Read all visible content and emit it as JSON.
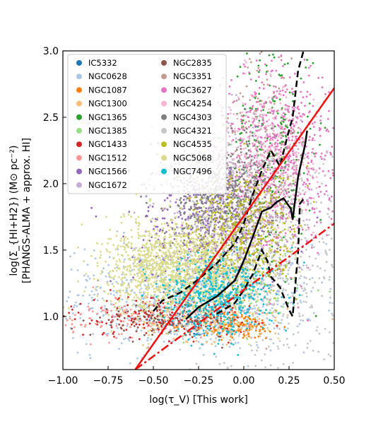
{
  "chart_data": {
    "type": "scatter",
    "title": "",
    "xlabel": "log(τ_V) [This work]",
    "ylabel_line1": "log(Σ_{HI+H2}) (M⊙ pc⁻²)",
    "ylabel_line2": "[PHANGS-ALMA + approx. HI]",
    "xlim": [
      -1.0,
      0.5
    ],
    "ylim": [
      0.6,
      3.0
    ],
    "xticks": [
      -1.0,
      -0.75,
      -0.5,
      -0.25,
      0.0,
      0.25,
      0.5
    ],
    "xtick_labels": [
      "−1.00",
      "−0.75",
      "−0.50",
      "−0.25",
      "0.00",
      "0.25",
      "0.50"
    ],
    "yticks": [
      1.0,
      1.5,
      2.0,
      2.5,
      3.0
    ],
    "ytick_labels": [
      "1.0",
      "1.5",
      "2.0",
      "2.5",
      "3.0"
    ],
    "legend_position": "top-left",
    "series": [
      {
        "name": "IC5332",
        "color": "#1f77b4",
        "center": [
          -0.3,
          0.95
        ],
        "spread": [
          0.12,
          0.05
        ],
        "count": 60
      },
      {
        "name": "NGC0628",
        "color": "#aec7e8",
        "center": [
          -0.3,
          1.15
        ],
        "spread": [
          0.35,
          0.2
        ],
        "count": 900
      },
      {
        "name": "NGC1087",
        "color": "#ff7f0e",
        "center": [
          -0.05,
          0.93
        ],
        "spread": [
          0.12,
          0.05
        ],
        "count": 150
      },
      {
        "name": "NGC1300",
        "color": "#ffbb78",
        "center": [
          -0.15,
          0.95
        ],
        "spread": [
          0.2,
          0.07
        ],
        "count": 150
      },
      {
        "name": "NGC1365",
        "color": "#2ca02c",
        "center": [
          0.15,
          2.3
        ],
        "spread": [
          0.12,
          0.45
        ],
        "count": 250
      },
      {
        "name": "NGC1385",
        "color": "#98df8a",
        "center": [
          -0.1,
          1.2
        ],
        "spread": [
          0.2,
          0.15
        ],
        "count": 150
      },
      {
        "name": "NGC1433",
        "color": "#d62728",
        "center": [
          -0.45,
          1.0
        ],
        "spread": [
          0.25,
          0.08
        ],
        "count": 200
      },
      {
        "name": "NGC1512",
        "color": "#ff9896",
        "center": [
          -0.55,
          1.0
        ],
        "spread": [
          0.25,
          0.08
        ],
        "count": 150
      },
      {
        "name": "NGC1566",
        "color": "#9467bd",
        "center": [
          -0.2,
          1.7
        ],
        "spread": [
          0.2,
          0.25
        ],
        "count": 500
      },
      {
        "name": "NGC1672",
        "color": "#c5b0d5",
        "center": [
          -0.1,
          1.9
        ],
        "spread": [
          0.2,
          0.3
        ],
        "count": 300
      },
      {
        "name": "NGC2835",
        "color": "#8c564b",
        "center": [
          -0.45,
          0.97
        ],
        "spread": [
          0.2,
          0.06
        ],
        "count": 120
      },
      {
        "name": "NGC3351",
        "color": "#c49c94",
        "center": [
          0.1,
          2.3
        ],
        "spread": [
          0.12,
          0.45
        ],
        "count": 200
      },
      {
        "name": "NGC3627",
        "color": "#e377c2",
        "center": [
          0.2,
          2.2
        ],
        "spread": [
          0.15,
          0.35
        ],
        "count": 700
      },
      {
        "name": "NGC4254",
        "color": "#f7b6d2",
        "center": [
          0.1,
          2.1
        ],
        "spread": [
          0.15,
          0.3
        ],
        "count": 400
      },
      {
        "name": "NGC4303",
        "color": "#7f7f7f",
        "center": [
          -0.1,
          1.9
        ],
        "spread": [
          0.15,
          0.2
        ],
        "count": 600
      },
      {
        "name": "NGC4321",
        "color": "#c7c7c7",
        "center": [
          0.1,
          1.5
        ],
        "spread": [
          0.25,
          0.45
        ],
        "count": 800
      },
      {
        "name": "NGC4535",
        "color": "#bcbd22",
        "center": [
          0.0,
          1.6
        ],
        "spread": [
          0.15,
          0.25
        ],
        "count": 500
      },
      {
        "name": "NGC5068",
        "color": "#dbdb8d",
        "center": [
          -0.35,
          1.35
        ],
        "spread": [
          0.2,
          0.18
        ],
        "count": 1500
      },
      {
        "name": "NGC7496",
        "color": "#17becf",
        "center": [
          -0.15,
          1.15
        ],
        "spread": [
          0.15,
          0.15
        ],
        "count": 500
      }
    ],
    "lines": [
      {
        "style": "solid",
        "color": "#000000",
        "points": [
          [
            -0.32,
            0.98
          ],
          [
            -0.25,
            1.07
          ],
          [
            -0.15,
            1.15
          ],
          [
            -0.05,
            1.27
          ],
          [
            0.0,
            1.42
          ],
          [
            0.05,
            1.6
          ],
          [
            0.1,
            1.79
          ],
          [
            0.15,
            1.82
          ],
          [
            0.18,
            1.86
          ],
          [
            0.22,
            1.89
          ],
          [
            0.26,
            1.81
          ],
          [
            0.27,
            1.73
          ],
          [
            0.3,
            2.05
          ],
          [
            0.34,
            2.3
          ],
          [
            0.35,
            2.4
          ]
        ]
      },
      {
        "style": "dashed",
        "color": "#000000",
        "points": [
          [
            -0.5,
            1.04
          ],
          [
            -0.45,
            1.12
          ],
          [
            -0.35,
            1.18
          ],
          [
            -0.25,
            1.28
          ],
          [
            -0.15,
            1.4
          ],
          [
            -0.05,
            1.55
          ],
          [
            0.0,
            1.7
          ],
          [
            0.05,
            1.92
          ],
          [
            0.1,
            2.1
          ],
          [
            0.15,
            2.25
          ],
          [
            0.2,
            2.13
          ],
          [
            0.24,
            2.35
          ],
          [
            0.27,
            2.5
          ],
          [
            0.3,
            2.85
          ],
          [
            0.33,
            3.0
          ]
        ]
      },
      {
        "style": "dashed",
        "color": "#000000",
        "points": [
          [
            -0.15,
            1.02
          ],
          [
            -0.05,
            1.1
          ],
          [
            0.0,
            1.2
          ],
          [
            0.05,
            1.32
          ],
          [
            0.1,
            1.5
          ],
          [
            0.13,
            1.42
          ],
          [
            0.15,
            1.3
          ],
          [
            0.2,
            1.22
          ],
          [
            0.25,
            1.05
          ],
          [
            0.27,
            1.0
          ],
          [
            0.3,
            1.48
          ],
          [
            0.31,
            1.85
          ],
          [
            0.34,
            1.9
          ]
        ]
      },
      {
        "style": "solid",
        "color": "#ee1111",
        "points": [
          [
            -0.6,
            0.6
          ],
          [
            0.5,
            2.72
          ]
        ]
      },
      {
        "style": "dashdot",
        "color": "#ee1111",
        "points": [
          [
            -0.6,
            0.6
          ],
          [
            0.0,
            1.2
          ],
          [
            0.5,
            1.7
          ]
        ]
      }
    ]
  }
}
